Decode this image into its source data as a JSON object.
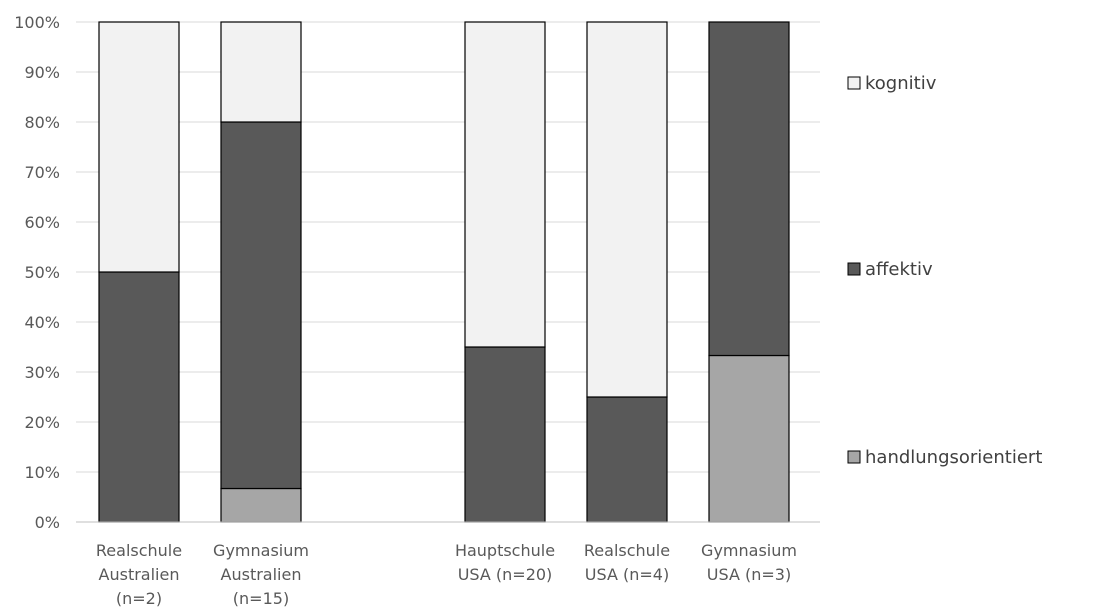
{
  "chart_data": {
    "type": "bar",
    "stacked": true,
    "percent_axis": true,
    "categories": [
      [
        "Realschule",
        "Australien",
        "(n=2)"
      ],
      [
        "Gymnasium",
        "Australien",
        "(n=15)"
      ],
      [
        "",
        "",
        ""
      ],
      [
        "Hauptschule",
        "USA (n=20)"
      ],
      [
        "Realschule",
        "USA (n=4)"
      ],
      [
        "Gymnasium",
        "USA (n=3)"
      ]
    ],
    "series": [
      {
        "name": "handlungsorientiert",
        "color": "#a6a6a6",
        "values": [
          0,
          6.7,
          null,
          0,
          0,
          33.3
        ]
      },
      {
        "name": "affektiv",
        "color": "#595959",
        "values": [
          50,
          73.3,
          null,
          35,
          25,
          66.7
        ]
      },
      {
        "name": "kognitiv",
        "color": "#f2f2f2",
        "values": [
          50,
          20,
          null,
          65,
          75,
          0
        ]
      }
    ],
    "y_ticks": [
      "0%",
      "10%",
      "20%",
      "30%",
      "40%",
      "50%",
      "60%",
      "70%",
      "80%",
      "90%",
      "100%"
    ],
    "ylim": [
      0,
      100
    ],
    "grid": true,
    "legend": {
      "position": "right",
      "entries": [
        "kognitiv",
        "affektiv",
        "handlungsorientiert"
      ]
    }
  }
}
